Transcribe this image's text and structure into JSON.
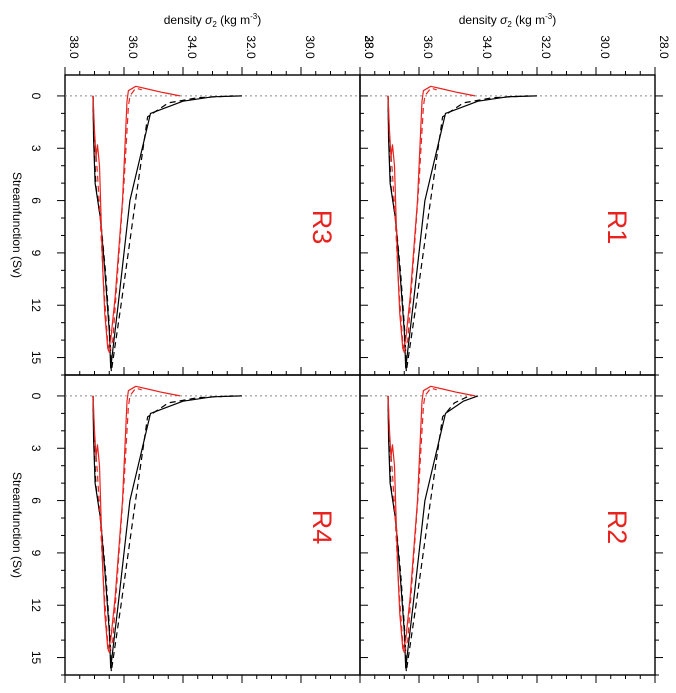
{
  "figure": {
    "x_axis_label": "density σ₂ (kg m⁻³)",
    "y_axis_label": "Streamfunction (Sv)",
    "x_ticks": [
      "38.0",
      "36.0",
      "34.0",
      "32.0",
      "30.0",
      "28.0"
    ],
    "y_ticks": [
      "0",
      "3",
      "6",
      "9",
      "12",
      "15"
    ],
    "colors": {
      "black": "#000000",
      "red": "#e8231f",
      "zero_line": "#888888"
    }
  },
  "chart_data": [
    {
      "type": "line",
      "panel": "R3",
      "xlim": [
        38.0,
        28.0
      ],
      "ylim": [
        -1.2,
        16.0
      ],
      "y_reversed": true,
      "reference_line": {
        "y": 0,
        "style": "dotted"
      },
      "xlabel": "density σ₂ (kg m⁻³)",
      "ylabel": "Streamfunction (Sv)",
      "series": [
        {
          "color": "#000000",
          "dash": "solid",
          "x": [
            37.05,
            37.03,
            36.98,
            36.8,
            36.65,
            36.5,
            36.45,
            36.2,
            35.8,
            35.1,
            34.0,
            33.0,
            32.0
          ],
          "y": [
            0.0,
            2.5,
            5.0,
            7.0,
            10.0,
            13.5,
            15.6,
            12.0,
            6.0,
            1.0,
            0.3,
            0.05,
            0.0
          ]
        },
        {
          "color": "#000000",
          "dash": "dashed",
          "x": [
            37.05,
            37.02,
            36.95,
            36.78,
            36.62,
            36.47,
            36.43,
            36.1,
            35.65,
            35.2,
            34.5,
            33.5,
            32.3
          ],
          "y": [
            0.0,
            2.6,
            5.2,
            7.3,
            10.2,
            13.8,
            15.8,
            12.0,
            6.5,
            1.2,
            0.4,
            0.1,
            0.0
          ]
        },
        {
          "color": "#e8231f",
          "dash": "solid",
          "x": [
            37.05,
            37.0,
            36.95,
            36.9,
            36.83,
            36.78,
            36.72,
            36.65,
            36.55,
            36.45,
            36.3,
            36.05,
            35.9,
            35.85,
            35.6,
            35.2,
            34.7,
            34.1
          ],
          "y": [
            0.0,
            2.0,
            3.5,
            2.8,
            4.0,
            6.8,
            10.0,
            12.5,
            14.5,
            14.0,
            11.5,
            6.0,
            0.3,
            -0.3,
            -0.55,
            -0.4,
            -0.2,
            0.0
          ]
        },
        {
          "color": "#e8231f",
          "dash": "dashed",
          "x": [
            37.05,
            37.0,
            36.9,
            36.8,
            36.7,
            36.58,
            36.52,
            36.38,
            36.0,
            35.85,
            35.8,
            35.6,
            35.4
          ],
          "y": [
            0.0,
            2.2,
            4.5,
            7.2,
            10.5,
            13.5,
            14.8,
            14.0,
            5.0,
            0.6,
            0.0,
            -0.45,
            -0.35
          ]
        }
      ]
    },
    {
      "type": "line",
      "panel": "R1",
      "xlim": [
        38.0,
        28.0
      ],
      "ylim": [
        -1.2,
        16.0
      ],
      "y_reversed": true,
      "reference_line": {
        "y": 0,
        "style": "dotted"
      },
      "xlabel": "density σ₂ (kg m⁻³)",
      "ylabel": "",
      "series": [
        {
          "color": "#000000",
          "dash": "solid",
          "x": [
            37.05,
            37.03,
            36.98,
            36.8,
            36.65,
            36.5,
            36.45,
            36.2,
            35.8,
            35.1,
            34.0,
            33.0,
            32.0
          ],
          "y": [
            0.0,
            2.5,
            5.0,
            7.0,
            10.0,
            13.5,
            15.6,
            12.0,
            6.0,
            1.0,
            0.3,
            0.05,
            0.0
          ]
        },
        {
          "color": "#000000",
          "dash": "dashed",
          "x": [
            37.05,
            37.02,
            36.95,
            36.78,
            36.62,
            36.47,
            36.43,
            36.1,
            35.65,
            35.2,
            34.5,
            33.5,
            32.3
          ],
          "y": [
            0.0,
            2.6,
            5.2,
            7.3,
            10.2,
            13.8,
            15.8,
            12.0,
            6.5,
            1.2,
            0.4,
            0.1,
            0.0
          ]
        },
        {
          "color": "#e8231f",
          "dash": "solid",
          "x": [
            37.05,
            37.0,
            36.95,
            36.9,
            36.83,
            36.78,
            36.72,
            36.65,
            36.55,
            36.45,
            36.3,
            36.05,
            35.9,
            35.85,
            35.6,
            35.2,
            34.7,
            34.1
          ],
          "y": [
            0.0,
            2.0,
            3.5,
            2.8,
            4.0,
            6.8,
            10.0,
            12.5,
            14.5,
            14.0,
            11.5,
            6.0,
            0.3,
            -0.3,
            -0.55,
            -0.4,
            -0.2,
            0.0
          ]
        },
        {
          "color": "#e8231f",
          "dash": "dashed",
          "x": [
            37.05,
            37.0,
            36.9,
            36.8,
            36.7,
            36.58,
            36.52,
            36.38,
            36.0,
            35.85,
            35.8,
            35.6,
            35.4
          ],
          "y": [
            0.0,
            2.2,
            4.5,
            7.2,
            10.5,
            13.5,
            14.8,
            14.0,
            5.0,
            0.6,
            0.0,
            -0.45,
            -0.35
          ]
        }
      ]
    },
    {
      "type": "line",
      "panel": "R4",
      "xlim": [
        38.0,
        28.0
      ],
      "ylim": [
        -1.2,
        16.0
      ],
      "y_reversed": true,
      "reference_line": {
        "y": 0,
        "style": "dotted"
      },
      "xlabel": "",
      "ylabel": "Streamfunction (Sv)",
      "series": [
        {
          "color": "#000000",
          "dash": "solid",
          "x": [
            37.05,
            37.03,
            36.98,
            36.8,
            36.65,
            36.5,
            36.45,
            36.2,
            35.8,
            35.1,
            34.0,
            33.0,
            32.0
          ],
          "y": [
            0.0,
            2.5,
            5.0,
            7.0,
            10.0,
            13.5,
            15.6,
            12.0,
            6.0,
            1.0,
            0.3,
            0.05,
            0.0
          ]
        },
        {
          "color": "#000000",
          "dash": "dashed",
          "x": [
            37.05,
            37.02,
            36.95,
            36.78,
            36.62,
            36.47,
            36.43,
            36.1,
            35.65,
            35.2,
            34.5,
            33.5,
            32.3
          ],
          "y": [
            0.0,
            2.6,
            5.2,
            7.3,
            10.2,
            13.8,
            15.8,
            12.0,
            6.5,
            1.2,
            0.4,
            0.1,
            0.0
          ]
        },
        {
          "color": "#e8231f",
          "dash": "solid",
          "x": [
            37.05,
            37.0,
            36.95,
            36.9,
            36.83,
            36.78,
            36.72,
            36.65,
            36.55,
            36.45,
            36.3,
            36.05,
            35.9,
            35.85,
            35.6,
            35.2,
            34.7,
            34.1
          ],
          "y": [
            0.0,
            2.0,
            3.5,
            2.8,
            4.0,
            6.8,
            10.0,
            12.5,
            14.5,
            14.0,
            11.5,
            6.0,
            0.3,
            -0.3,
            -0.55,
            -0.4,
            -0.2,
            0.0
          ]
        },
        {
          "color": "#e8231f",
          "dash": "dashed",
          "x": [
            37.05,
            37.0,
            36.9,
            36.8,
            36.7,
            36.58,
            36.52,
            36.38,
            36.0,
            35.85,
            35.8,
            35.6,
            35.4
          ],
          "y": [
            0.0,
            2.2,
            4.5,
            7.2,
            10.5,
            13.5,
            14.8,
            14.0,
            5.0,
            0.6,
            0.0,
            -0.45,
            -0.35
          ]
        }
      ]
    },
    {
      "type": "line",
      "panel": "R2",
      "xlim": [
        38.0,
        28.0
      ],
      "ylim": [
        -1.2,
        16.0
      ],
      "y_reversed": true,
      "reference_line": {
        "y": 0,
        "style": "dotted"
      },
      "xlabel": "",
      "ylabel": "",
      "series": [
        {
          "color": "#000000",
          "dash": "solid",
          "x": [
            37.05,
            37.03,
            36.98,
            36.8,
            36.65,
            36.5,
            36.45,
            36.2,
            35.8,
            35.1,
            34.5,
            34.0
          ],
          "y": [
            0.0,
            2.5,
            5.0,
            7.0,
            10.0,
            13.5,
            15.6,
            12.0,
            6.0,
            1.0,
            0.3,
            0.0
          ]
        },
        {
          "color": "#000000",
          "dash": "dashed",
          "x": [
            37.05,
            37.02,
            36.95,
            36.78,
            36.62,
            36.47,
            36.43,
            36.1,
            35.65,
            35.2,
            34.8,
            34.3
          ],
          "y": [
            0.0,
            2.6,
            5.2,
            7.3,
            10.2,
            13.8,
            15.8,
            12.0,
            6.5,
            1.2,
            0.4,
            0.0
          ]
        },
        {
          "color": "#e8231f",
          "dash": "solid",
          "x": [
            37.05,
            37.0,
            36.95,
            36.9,
            36.83,
            36.78,
            36.72,
            36.65,
            36.55,
            36.45,
            36.3,
            36.05,
            35.9,
            35.85,
            35.6,
            35.2,
            34.7,
            34.1
          ],
          "y": [
            0.0,
            2.0,
            3.5,
            2.8,
            4.0,
            6.8,
            10.0,
            12.5,
            14.5,
            14.0,
            11.5,
            6.0,
            0.3,
            -0.3,
            -0.55,
            -0.4,
            -0.2,
            0.0
          ]
        },
        {
          "color": "#e8231f",
          "dash": "dashed",
          "x": [
            37.05,
            37.0,
            36.9,
            36.8,
            36.7,
            36.58,
            36.52,
            36.38,
            36.0,
            35.85,
            35.8,
            35.6,
            35.4
          ],
          "y": [
            0.0,
            2.2,
            4.5,
            7.2,
            10.5,
            13.5,
            14.8,
            14.0,
            5.0,
            0.6,
            0.0,
            -0.45,
            -0.35
          ]
        }
      ]
    }
  ]
}
